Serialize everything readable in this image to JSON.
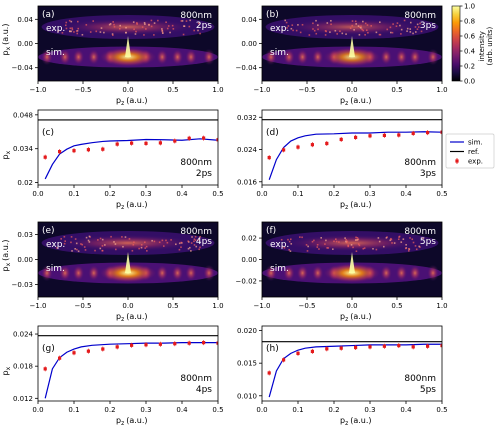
{
  "colorbar": {
    "label_line1": "intensity",
    "label_line2": "(arb. units)",
    "ticks": [
      0.0,
      0.2,
      0.4,
      0.6,
      0.8,
      1.0
    ],
    "tick_labels": [
      "0.0",
      "0.2",
      "0.4",
      "0.6",
      "0.8",
      "1.0"
    ],
    "colors": [
      "#000004",
      "#1b0c41",
      "#4a0c6b",
      "#781c6d",
      "#a52c60",
      "#cf4446",
      "#ed6925",
      "#fb9b06",
      "#f7d13d",
      "#fcffa4"
    ]
  },
  "legend": {
    "entries": [
      {
        "label": "sim.",
        "kind": "line",
        "color": "#0000cc"
      },
      {
        "label": "ref.",
        "kind": "line",
        "color": "#000000"
      },
      {
        "label": "exp.",
        "kind": "errorbar",
        "color": "#e41a1c"
      }
    ]
  },
  "chart_data": [
    {
      "type": "heatmap",
      "label": "(a)",
      "title_line1": "800nm",
      "title_line2": "2ps",
      "xlabel": "p",
      "xlabel_sub": "z",
      "xlabel_unit": "(a.u.)",
      "ylabel": "p",
      "ylabel_sub": "x",
      "ylabel_unit": "(a.u.)",
      "xlim": [
        -1.0,
        1.0
      ],
      "ylim": [
        -0.062,
        0.062
      ],
      "xticks": [
        -1.0,
        -0.5,
        0.0,
        0.5,
        1.0
      ],
      "xtick_labels": [
        "−1.0",
        "−0.5",
        "0.0",
        "0.5",
        "1.0"
      ],
      "yticks": [
        -0.04,
        0.0,
        0.04
      ],
      "ytick_labels": [
        "−0.04",
        "0.00",
        "0.04"
      ],
      "top_label": "exp.",
      "bottom_label": "sim.",
      "exp_intensity": 0.55,
      "sim_intensity": 0.95
    },
    {
      "type": "heatmap",
      "label": "(b)",
      "title_line1": "800nm",
      "title_line2": "3ps",
      "xlabel": "p",
      "xlabel_sub": "z",
      "xlabel_unit": "(a.u.)",
      "ylabel": "",
      "ylabel_sub": "",
      "ylabel_unit": "",
      "xlim": [
        -1.0,
        1.0
      ],
      "ylim": [
        -0.062,
        0.062
      ],
      "xticks": [
        -1.0,
        -0.5,
        0.0,
        0.5,
        1.0
      ],
      "xtick_labels": [
        "−1.0",
        "−0.5",
        "0.0",
        "0.5",
        "1.0"
      ],
      "yticks": [
        -0.04,
        0.0,
        0.04
      ],
      "ytick_labels": [
        "−0.04",
        "0.00",
        "0.04"
      ],
      "top_label": "exp.",
      "bottom_label": "sim.",
      "exp_intensity": 0.5,
      "sim_intensity": 0.9
    },
    {
      "type": "line",
      "label": "(c)",
      "title_line1": "800nm",
      "title_line2": "2ps",
      "xlabel": "p",
      "xlabel_sub": "z",
      "xlabel_unit": "(a.u.)",
      "ylabel": "p",
      "ylabel_sub": "x",
      "ylabel_unit": "",
      "xlim": [
        0.0,
        0.5
      ],
      "ylim": [
        0.019,
        0.05
      ],
      "xticks": [
        0.0,
        0.1,
        0.2,
        0.3,
        0.4,
        0.5
      ],
      "xtick_labels": [
        "0.0",
        "0.1",
        "0.2",
        "0.3",
        "0.4",
        "0.5"
      ],
      "yticks": [
        0.02,
        0.034,
        0.048
      ],
      "ytick_labels": [
        "0.02",
        "0.034",
        "0.048"
      ],
      "ref": 0.0459,
      "sim": {
        "x": [
          0.02,
          0.04,
          0.06,
          0.08,
          0.1,
          0.12,
          0.15,
          0.18,
          0.2,
          0.25,
          0.3,
          0.35,
          0.4,
          0.45,
          0.5
        ],
        "y": [
          0.0215,
          0.0275,
          0.0318,
          0.0338,
          0.0352,
          0.0358,
          0.0365,
          0.037,
          0.0372,
          0.0374,
          0.0378,
          0.0377,
          0.0375,
          0.0381,
          0.0375
        ]
      },
      "exp": {
        "x": [
          0.02,
          0.06,
          0.1,
          0.14,
          0.18,
          0.22,
          0.26,
          0.3,
          0.34,
          0.38,
          0.42,
          0.46,
          0.5
        ],
        "y": [
          0.0305,
          0.0328,
          0.0332,
          0.0336,
          0.0338,
          0.0359,
          0.0363,
          0.0362,
          0.0364,
          0.0372,
          0.0383,
          0.0384,
          0.0377
        ]
      }
    },
    {
      "type": "line",
      "label": "(d)",
      "title_line1": "800nm",
      "title_line2": "3ps",
      "xlabel": "p",
      "xlabel_sub": "z",
      "xlabel_unit": "(a.u.)",
      "ylabel": "",
      "ylabel_sub": "",
      "ylabel_unit": "",
      "xlim": [
        0.0,
        0.5
      ],
      "ylim": [
        0.0152,
        0.0338
      ],
      "xticks": [
        0.0,
        0.1,
        0.2,
        0.3,
        0.4,
        0.5
      ],
      "xtick_labels": [
        "0.0",
        "0.1",
        "0.2",
        "0.3",
        "0.4",
        "0.5"
      ],
      "yticks": [
        0.016,
        0.024,
        0.032
      ],
      "ytick_labels": [
        "0.016",
        "0.024",
        "0.032"
      ],
      "ref": 0.0314,
      "sim": {
        "x": [
          0.02,
          0.04,
          0.06,
          0.08,
          0.1,
          0.12,
          0.15,
          0.2,
          0.25,
          0.3,
          0.35,
          0.4,
          0.45,
          0.5
        ],
        "y": [
          0.0165,
          0.0215,
          0.0245,
          0.0261,
          0.0269,
          0.0274,
          0.0278,
          0.0279,
          0.0281,
          0.0281,
          0.0283,
          0.0283,
          0.0284,
          0.0283
        ]
      },
      "exp": {
        "x": [
          0.02,
          0.06,
          0.1,
          0.14,
          0.18,
          0.22,
          0.26,
          0.3,
          0.34,
          0.38,
          0.42,
          0.46,
          0.5
        ],
        "y": [
          0.022,
          0.0239,
          0.0246,
          0.0252,
          0.0255,
          0.0265,
          0.027,
          0.0274,
          0.0275,
          0.0276,
          0.028,
          0.0282,
          0.0283
        ]
      }
    },
    {
      "type": "heatmap",
      "label": "(e)",
      "title_line1": "800nm",
      "title_line2": "4ps",
      "xlabel": "p",
      "xlabel_sub": "z",
      "xlabel_unit": "(a.u.)",
      "ylabel": "p",
      "ylabel_sub": "x",
      "ylabel_unit": "(a.u.)",
      "xlim": [
        -1.0,
        1.0
      ],
      "ylim": [
        -0.045,
        0.045
      ],
      "xticks": [
        -1.0,
        -0.5,
        0.0,
        0.5,
        1.0
      ],
      "xtick_labels": [
        "−1.0",
        "−0.5",
        "0.0",
        "0.5",
        "1.0"
      ],
      "yticks": [
        -0.03,
        0.0,
        0.03
      ],
      "ytick_labels": [
        "−0.03",
        "0.00",
        "0.03"
      ],
      "top_label": "exp.",
      "bottom_label": "sim.",
      "exp_intensity": 0.6,
      "sim_intensity": 1.0
    },
    {
      "type": "heatmap",
      "label": "(f)",
      "title_line1": "800nm",
      "title_line2": "5ps",
      "xlabel": "p",
      "xlabel_sub": "z",
      "xlabel_unit": "(a.u.)",
      "ylabel": "",
      "ylabel_sub": "",
      "ylabel_unit": "",
      "xlim": [
        -1.0,
        1.0
      ],
      "ylim": [
        -0.035,
        0.035
      ],
      "xticks": [
        -1.0,
        -0.5,
        0.0,
        0.5,
        1.0
      ],
      "xtick_labels": [
        "−1.0",
        "−0.5",
        "0.0",
        "0.5",
        "1.0"
      ],
      "yticks": [
        -0.02,
        0.0,
        0.02
      ],
      "ytick_labels": [
        "−0.02",
        "0.00",
        "0.02"
      ],
      "top_label": "exp.",
      "bottom_label": "sim.",
      "exp_intensity": 0.6,
      "sim_intensity": 1.0
    },
    {
      "type": "line",
      "label": "(g)",
      "title_line1": "800nm",
      "title_line2": "4ps",
      "xlabel": "p",
      "xlabel_sub": "z",
      "xlabel_unit": "(a.u.)",
      "ylabel": "p",
      "ylabel_sub": "x",
      "ylabel_unit": "",
      "xlim": [
        0.0,
        0.5
      ],
      "ylim": [
        0.0115,
        0.0255
      ],
      "xticks": [
        0.0,
        0.1,
        0.2,
        0.3,
        0.4,
        0.5
      ],
      "xtick_labels": [
        "0.0",
        "0.1",
        "0.2",
        "0.3",
        "0.4",
        "0.5"
      ],
      "yticks": [
        0.012,
        0.018,
        0.024
      ],
      "ytick_labels": [
        "0.012",
        "0.018",
        "0.024"
      ],
      "ref": 0.0237,
      "sim": {
        "x": [
          0.02,
          0.04,
          0.06,
          0.08,
          0.1,
          0.12,
          0.15,
          0.2,
          0.25,
          0.3,
          0.35,
          0.4,
          0.45,
          0.5
        ],
        "y": [
          0.012,
          0.0175,
          0.0196,
          0.0206,
          0.0212,
          0.0216,
          0.0219,
          0.0221,
          0.0222,
          0.0223,
          0.0223,
          0.0224,
          0.0224,
          0.0224
        ]
      },
      "exp": {
        "x": [
          0.02,
          0.06,
          0.1,
          0.14,
          0.18,
          0.22,
          0.26,
          0.3,
          0.34,
          0.38,
          0.42,
          0.46,
          0.5
        ],
        "y": [
          0.0175,
          0.0195,
          0.0205,
          0.0208,
          0.0212,
          0.0216,
          0.0219,
          0.022,
          0.0221,
          0.0222,
          0.0223,
          0.0224,
          0.0223
        ]
      }
    },
    {
      "type": "line",
      "label": "(h)",
      "title_line1": "800nm",
      "title_line2": "5ps",
      "xlabel": "p",
      "xlabel_sub": "z",
      "xlabel_unit": "(a.u.)",
      "ylabel": "",
      "ylabel_sub": "",
      "ylabel_unit": "",
      "xlim": [
        0.0,
        0.5
      ],
      "ylim": [
        0.0092,
        0.0207
      ],
      "xticks": [
        0.0,
        0.1,
        0.2,
        0.3,
        0.4,
        0.5
      ],
      "xtick_labels": [
        "0.0",
        "0.1",
        "0.2",
        "0.3",
        "0.4",
        "0.5"
      ],
      "yticks": [
        0.01,
        0.015,
        0.02
      ],
      "ytick_labels": [
        "0.010",
        "0.015",
        "0.020"
      ],
      "ref": 0.0183,
      "sim": {
        "x": [
          0.02,
          0.04,
          0.06,
          0.08,
          0.1,
          0.12,
          0.15,
          0.2,
          0.25,
          0.3,
          0.35,
          0.4,
          0.45,
          0.5
        ],
        "y": [
          0.0098,
          0.0138,
          0.0157,
          0.0165,
          0.017,
          0.0173,
          0.0175,
          0.0176,
          0.0177,
          0.0178,
          0.0178,
          0.0178,
          0.0179,
          0.0179
        ]
      },
      "exp": {
        "x": [
          0.02,
          0.06,
          0.1,
          0.14,
          0.18,
          0.22,
          0.26,
          0.3,
          0.34,
          0.38,
          0.42,
          0.46,
          0.5
        ],
        "y": [
          0.0135,
          0.0155,
          0.0165,
          0.0168,
          0.0172,
          0.0173,
          0.0174,
          0.0175,
          0.0176,
          0.0177,
          0.0175,
          0.0176,
          0.0177
        ]
      }
    }
  ]
}
